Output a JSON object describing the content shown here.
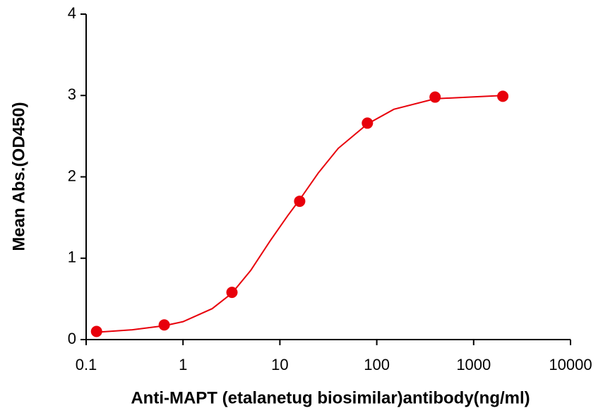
{
  "chart_data": {
    "type": "scatter",
    "xlabel": "Anti-MAPT (etalanetug biosimilar)antibody(ng/ml)",
    "ylabel": "Mean Abs.(OD450)",
    "xscale": "log",
    "xlim": [
      0.1,
      10000
    ],
    "xticks": [
      0.1,
      1,
      10,
      100,
      1000,
      10000
    ],
    "ylim": [
      0,
      4
    ],
    "yticks": [
      0,
      1,
      2,
      3,
      4
    ],
    "series": [
      {
        "mode": "markers",
        "color": "#e8000b",
        "x": [
          0.128,
          0.64,
          3.2,
          16,
          80,
          400,
          2000
        ],
        "values": [
          0.1,
          0.18,
          0.58,
          1.7,
          2.66,
          2.98,
          2.99
        ]
      },
      {
        "mode": "line",
        "color": "#e8000b",
        "x": [
          0.128,
          0.3,
          0.64,
          1,
          2,
          3.2,
          5,
          8,
          12,
          16,
          25,
          40,
          80,
          150,
          400,
          2000
        ],
        "values": [
          0.09,
          0.12,
          0.17,
          0.22,
          0.38,
          0.57,
          0.85,
          1.22,
          1.52,
          1.72,
          2.05,
          2.35,
          2.65,
          2.83,
          2.96,
          3.0
        ]
      }
    ]
  }
}
